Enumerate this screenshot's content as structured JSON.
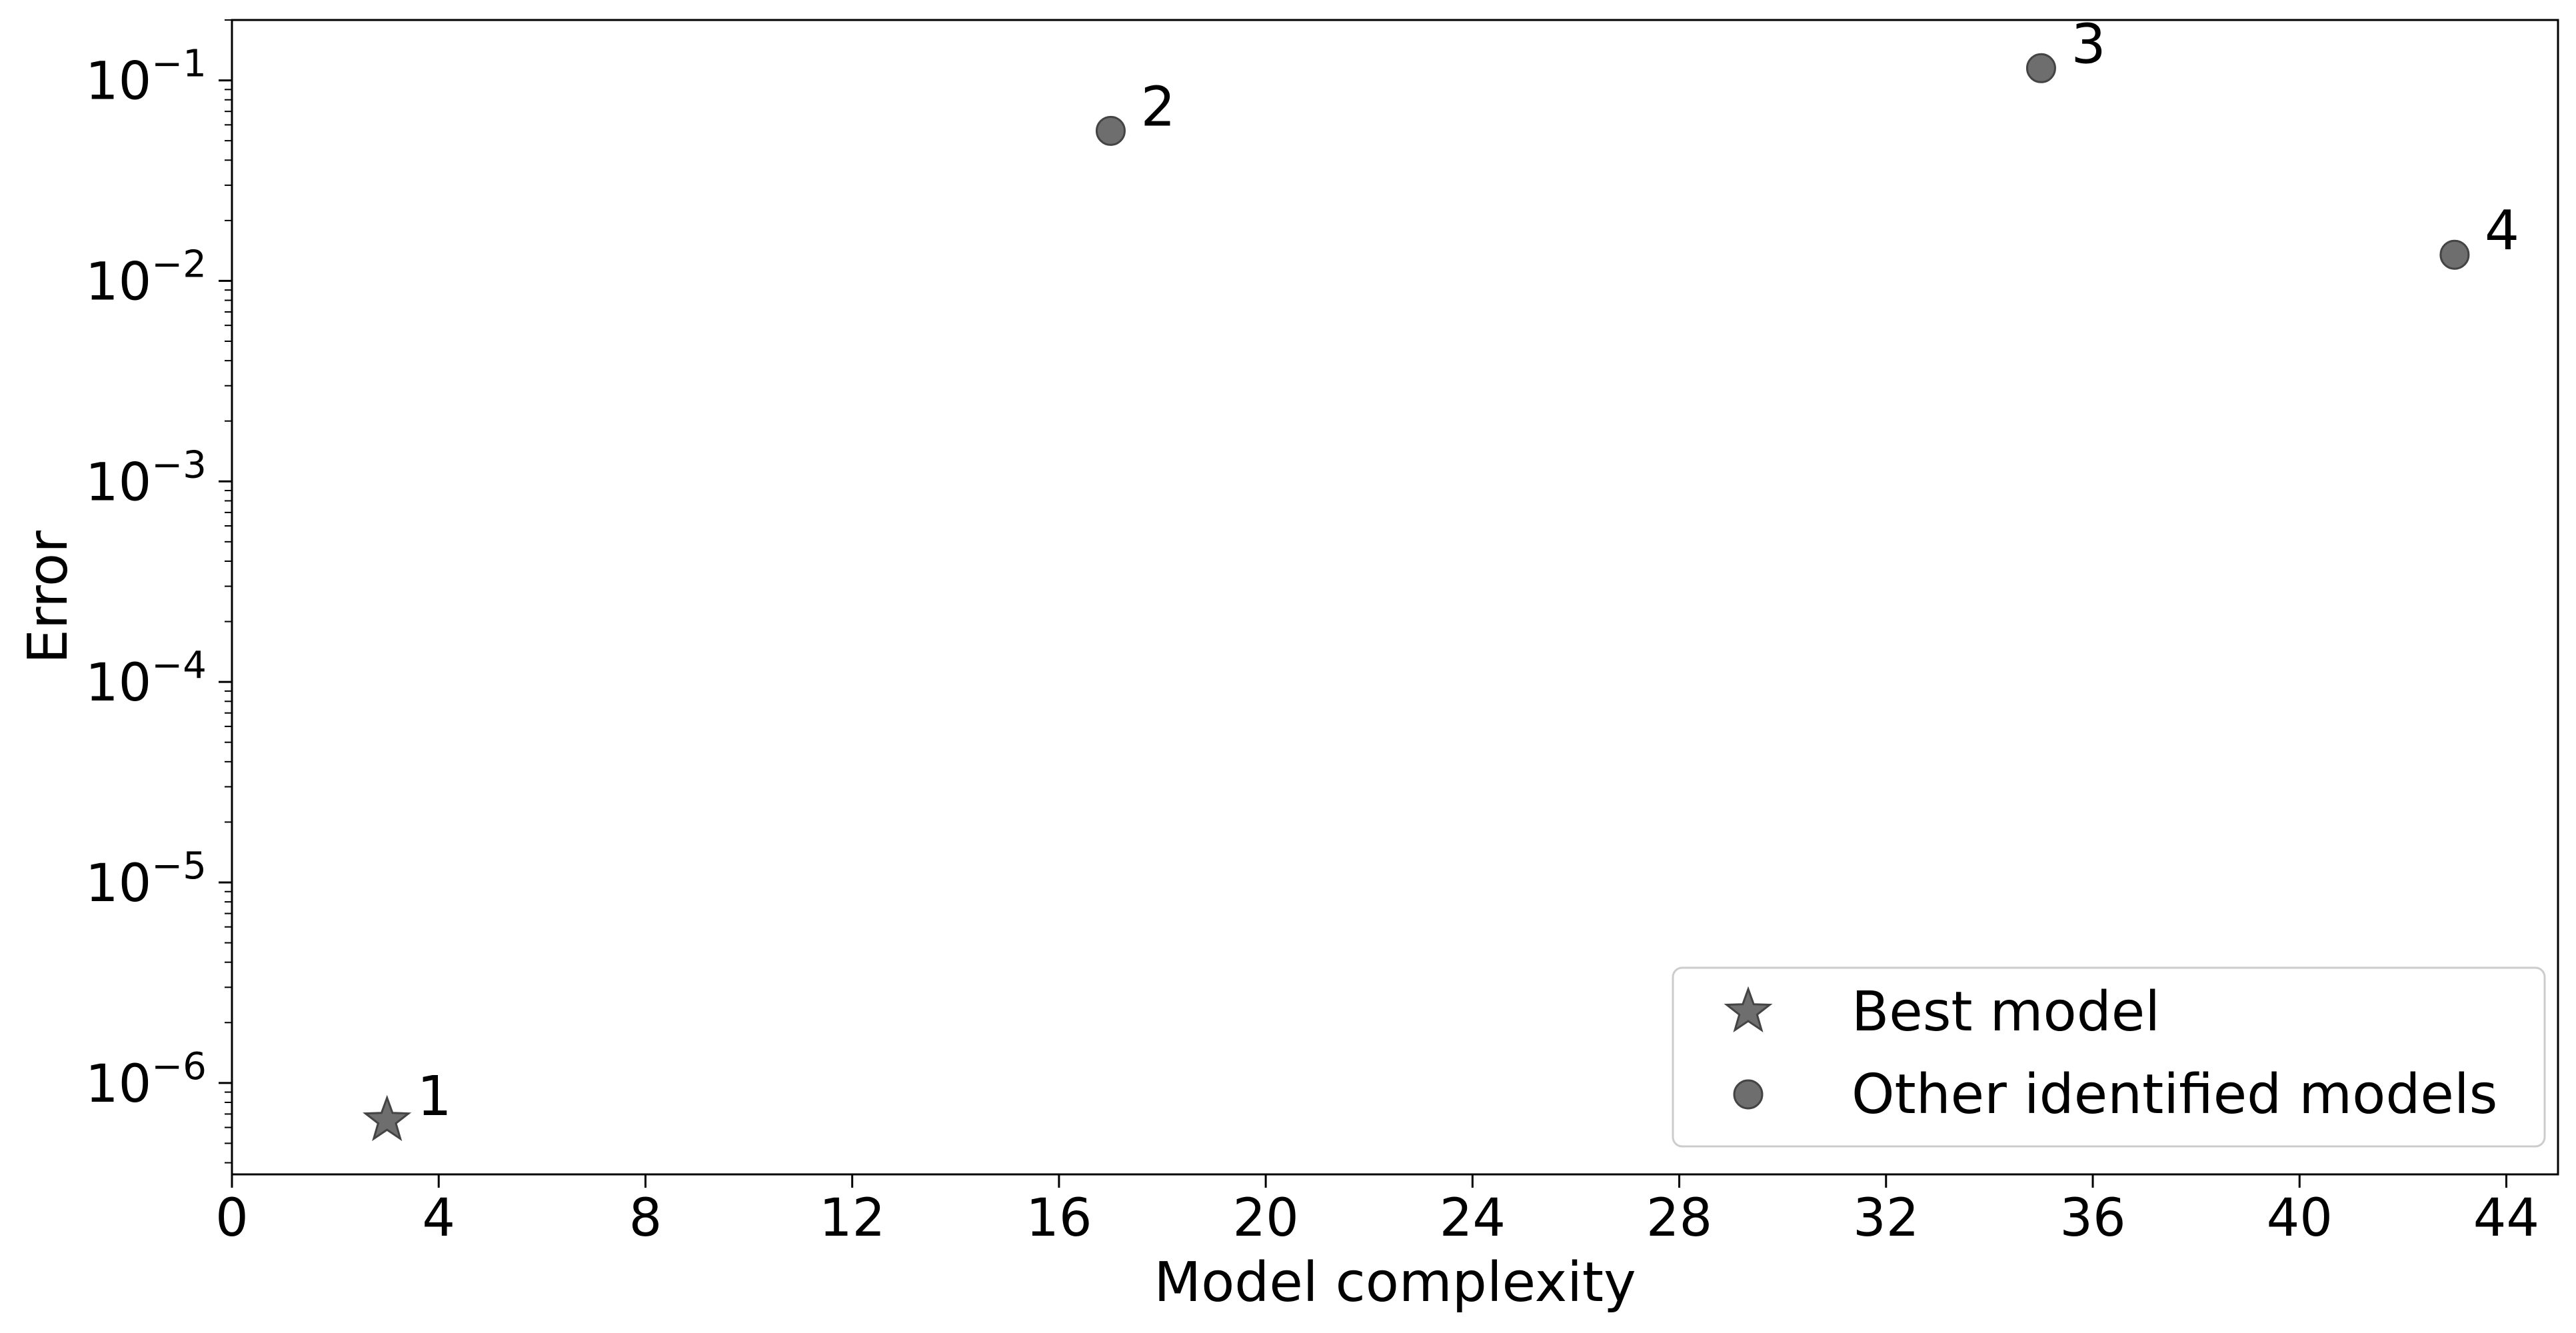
{
  "chart_data": {
    "type": "scatter",
    "title": "",
    "xlabel": "Model complexity",
    "ylabel": "Error",
    "xlim": [
      0,
      45
    ],
    "ylim": [
      3.5e-07,
      0.2
    ],
    "yscale": "log",
    "xticks": [
      0,
      4,
      8,
      12,
      16,
      20,
      24,
      28,
      32,
      36,
      40,
      44
    ],
    "yticks": [
      {
        "value": 1e-06,
        "base": "10",
        "exp": "−6"
      },
      {
        "value": 1e-05,
        "base": "10",
        "exp": "−5"
      },
      {
        "value": 0.0001,
        "base": "10",
        "exp": "−4"
      },
      {
        "value": 0.001,
        "base": "10",
        "exp": "−3"
      },
      {
        "value": 0.01,
        "base": "10",
        "exp": "−2"
      },
      {
        "value": 0.1,
        "base": "10",
        "exp": "−1"
      }
    ],
    "grid": false,
    "legend_position": "bottom-right",
    "series": [
      {
        "name": "Best model",
        "marker": "star",
        "color": "#6e6e6e",
        "points": [
          {
            "x": 3,
            "y": 6.5e-07,
            "label": "1"
          }
        ]
      },
      {
        "name": "Other identified models",
        "marker": "circle",
        "color": "#6e6e6e",
        "points": [
          {
            "x": 17,
            "y": 0.056,
            "label": "2"
          },
          {
            "x": 35,
            "y": 0.115,
            "label": "3"
          },
          {
            "x": 43,
            "y": 0.0135,
            "label": "4"
          }
        ]
      }
    ]
  }
}
